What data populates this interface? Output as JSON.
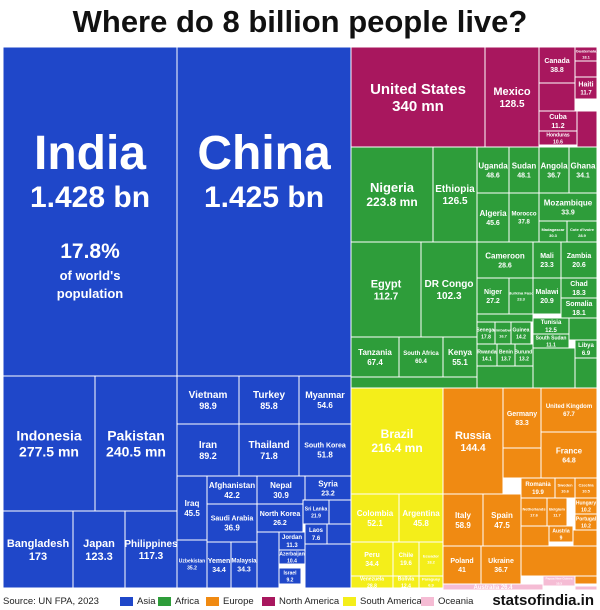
{
  "chart_data": {
    "type": "treemap",
    "title": "Where do 8 billion people live?",
    "unit_note": "population",
    "regions": [
      {
        "name": "Asia",
        "color": "#1f47c9"
      },
      {
        "name": "Africa",
        "color": "#2e9d3a"
      },
      {
        "name": "Europe",
        "color": "#f08a12"
      },
      {
        "name": "North America",
        "color": "#a8175e"
      },
      {
        "name": "South America",
        "color": "#f4ee1a"
      },
      {
        "name": "Oceania",
        "color": "#f5bcd4"
      }
    ],
    "items": [
      {
        "label": "India",
        "value": "1.428 bn",
        "region": "Asia",
        "share_label": "17.8%",
        "share_sub": "of world's population"
      },
      {
        "label": "China",
        "value": "1.425 bn",
        "region": "Asia"
      },
      {
        "label": "Indonesia",
        "value": "277.5 mn",
        "region": "Asia"
      },
      {
        "label": "Pakistan",
        "value": "240.5 mn",
        "region": "Asia"
      },
      {
        "label": "Bangladesh",
        "value": "173",
        "region": "Asia"
      },
      {
        "label": "Japan",
        "value": "123.3",
        "region": "Asia"
      },
      {
        "label": "Philippines",
        "value": "117.3",
        "region": "Asia"
      },
      {
        "label": "Vietnam",
        "value": "98.9",
        "region": "Asia"
      },
      {
        "label": "Turkey",
        "value": "85.8",
        "region": "Asia"
      },
      {
        "label": "Myanmar",
        "value": "54.6",
        "region": "Asia"
      },
      {
        "label": "Iran",
        "value": "89.2",
        "region": "Asia"
      },
      {
        "label": "Thailand",
        "value": "71.8",
        "region": "Asia"
      },
      {
        "label": "South Korea",
        "value": "51.8",
        "region": "Asia"
      },
      {
        "label": "Iraq",
        "value": "45.5",
        "region": "Asia"
      },
      {
        "label": "Afghanistan",
        "value": "42.2",
        "region": "Asia"
      },
      {
        "label": "Nepal",
        "value": "30.9",
        "region": "Asia"
      },
      {
        "label": "Syria",
        "value": "23.2",
        "region": "Asia"
      },
      {
        "label": "Saudi Arabia",
        "value": "36.9",
        "region": "Asia"
      },
      {
        "label": "North Korea",
        "value": "26.2",
        "region": "Asia"
      },
      {
        "label": "Sri Lanka",
        "value": "21.9",
        "region": "Asia"
      },
      {
        "label": "Uzbekistan",
        "value": "35.2",
        "region": "Asia"
      },
      {
        "label": "Yemen",
        "value": "34.4",
        "region": "Asia"
      },
      {
        "label": "Malaysia",
        "value": "34.3",
        "region": "Asia"
      },
      {
        "label": "Jordan",
        "value": "11.3",
        "region": "Asia"
      },
      {
        "label": "Laos",
        "value": "7.6",
        "region": "Asia"
      },
      {
        "label": "Azerbaijan",
        "value": "10.4",
        "region": "Asia"
      },
      {
        "label": "Israel",
        "value": "9.2",
        "region": "Asia"
      },
      {
        "label": "United States",
        "value": "340 mn",
        "region": "North America"
      },
      {
        "label": "Mexico",
        "value": "128.5",
        "region": "North America"
      },
      {
        "label": "Canada",
        "value": "38.8",
        "region": "North America"
      },
      {
        "label": "Haiti",
        "value": "11.7",
        "region": "North America"
      },
      {
        "label": "Cuba",
        "value": "11.2",
        "region": "North America"
      },
      {
        "label": "Honduras",
        "value": "10.6",
        "region": "North America"
      },
      {
        "label": "Guatemala",
        "value": "18.1",
        "region": "North America"
      },
      {
        "label": "Nigeria",
        "value": "223.8 mn",
        "region": "Africa"
      },
      {
        "label": "Ethiopia",
        "value": "126.5",
        "region": "Africa"
      },
      {
        "label": "Uganda",
        "value": "48.6",
        "region": "Africa"
      },
      {
        "label": "Sudan",
        "value": "48.1",
        "region": "Africa"
      },
      {
        "label": "Angola",
        "value": "36.7",
        "region": "Africa"
      },
      {
        "label": "Ghana",
        "value": "34.1",
        "region": "Africa"
      },
      {
        "label": "Mozambique",
        "value": "33.9",
        "region": "Africa"
      },
      {
        "label": "Algeria",
        "value": "45.6",
        "region": "Africa"
      },
      {
        "label": "Morocco",
        "value": "37.8",
        "region": "Africa"
      },
      {
        "label": "Madagascar",
        "value": "30.3",
        "region": "Africa"
      },
      {
        "label": "Cote d'Ivoire",
        "value": "28.9",
        "region": "Africa"
      },
      {
        "label": "Egypt",
        "value": "112.7",
        "region": "Africa"
      },
      {
        "label": "DR Congo",
        "value": "102.3",
        "region": "Africa"
      },
      {
        "label": "Cameroon",
        "value": "28.6",
        "region": "Africa"
      },
      {
        "label": "Mali",
        "value": "23.3",
        "region": "Africa"
      },
      {
        "label": "Zambia",
        "value": "20.6",
        "region": "Africa"
      },
      {
        "label": "Niger",
        "value": "27.2",
        "region": "Africa"
      },
      {
        "label": "Burkina Faso",
        "value": "23.3",
        "region": "Africa"
      },
      {
        "label": "Malawi",
        "value": "20.9",
        "region": "Africa"
      },
      {
        "label": "Chad",
        "value": "18.3",
        "region": "Africa"
      },
      {
        "label": "Somalia",
        "value": "18.1",
        "region": "Africa"
      },
      {
        "label": "Tanzania",
        "value": "67.4",
        "region": "Africa"
      },
      {
        "label": "South Africa",
        "value": "60.4",
        "region": "Africa"
      },
      {
        "label": "Kenya",
        "value": "55.1",
        "region": "Africa"
      },
      {
        "label": "Senegal",
        "value": "17.8",
        "region": "Africa"
      },
      {
        "label": "Zimbabwe",
        "value": "16.7",
        "region": "Africa"
      },
      {
        "label": "Guinea",
        "value": "14.2",
        "region": "Africa"
      },
      {
        "label": "Tunisia",
        "value": "12.5",
        "region": "Africa"
      },
      {
        "label": "South Sudan",
        "value": "11.1",
        "region": "Africa"
      },
      {
        "label": "Rwanda",
        "value": "14.1",
        "region": "Africa"
      },
      {
        "label": "Benin",
        "value": "13.7",
        "region": "Africa"
      },
      {
        "label": "Burundi",
        "value": "13.2",
        "region": "Africa"
      },
      {
        "label": "Libya",
        "value": "6.9",
        "region": "Africa"
      },
      {
        "label": "Russia",
        "value": "144.4",
        "region": "Europe"
      },
      {
        "label": "Germany",
        "value": "83.3",
        "region": "Europe"
      },
      {
        "label": "United Kingdom",
        "value": "67.7",
        "region": "Europe"
      },
      {
        "label": "France",
        "value": "64.8",
        "region": "Europe"
      },
      {
        "label": "Italy",
        "value": "58.9",
        "region": "Europe"
      },
      {
        "label": "Spain",
        "value": "47.5",
        "region": "Europe"
      },
      {
        "label": "Romania",
        "value": "19.9",
        "region": "Europe"
      },
      {
        "label": "Sweden",
        "value": "10.6",
        "region": "Europe"
      },
      {
        "label": "Czechia",
        "value": "10.5",
        "region": "Europe"
      },
      {
        "label": "Hungary",
        "value": "10.2",
        "region": "Europe"
      },
      {
        "label": "Portugal",
        "value": "10.2",
        "region": "Europe"
      },
      {
        "label": "Netherlands",
        "value": "17.6",
        "region": "Europe"
      },
      {
        "label": "Belgium",
        "value": "11.7",
        "region": "Europe"
      },
      {
        "label": "Austria",
        "value": "9",
        "region": "Europe"
      },
      {
        "label": "Poland",
        "value": "41",
        "region": "Europe"
      },
      {
        "label": "Ukraine",
        "value": "36.7",
        "region": "Europe"
      },
      {
        "label": "Brazil",
        "value": "216.4 mn",
        "region": "South America"
      },
      {
        "label": "Colombia",
        "value": "52.1",
        "region": "South America"
      },
      {
        "label": "Argentina",
        "value": "45.8",
        "region": "South America"
      },
      {
        "label": "Peru",
        "value": "34.4",
        "region": "South America"
      },
      {
        "label": "Chile",
        "value": "19.6",
        "region": "South America"
      },
      {
        "label": "Ecuador",
        "value": "18.2",
        "region": "South America"
      },
      {
        "label": "Venezuela",
        "value": "28.8",
        "region": "South America"
      },
      {
        "label": "Bolivia",
        "value": "12.4",
        "region": "South America"
      },
      {
        "label": "Paraguay",
        "value": "6.9",
        "region": "South America"
      },
      {
        "label": "Australia",
        "value": "26.4",
        "region": "Oceania"
      },
      {
        "label": "Papua New Guinea",
        "value": "10.3",
        "region": "Oceania"
      }
    ]
  },
  "footer": {
    "source": "Source: UN FPA, 2023",
    "brand": "statsofindia.in"
  }
}
